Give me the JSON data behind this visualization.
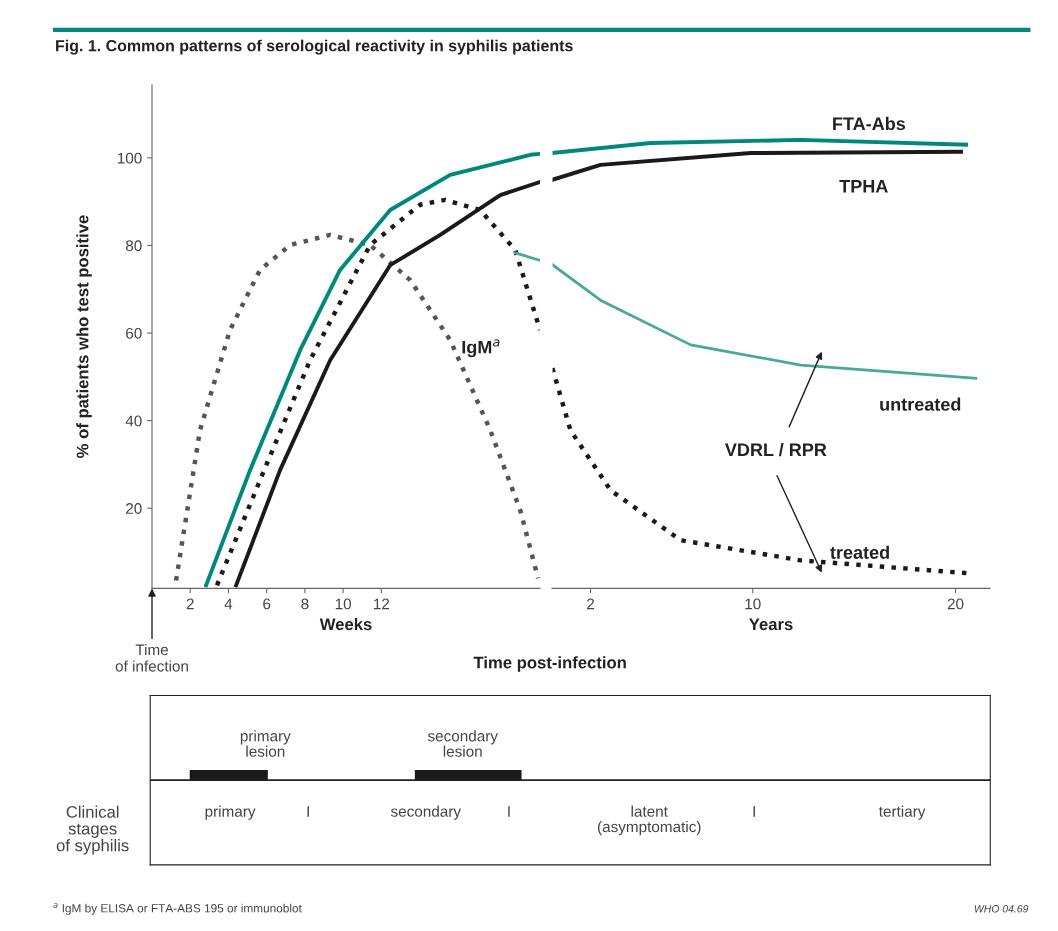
{
  "chart_data": [
    {
      "type": "line",
      "title": "Fig. 1. Common patterns of serological reactivity in syphilis patients",
      "ylabel": "% of patients who test positive",
      "xlabel": "Weeks",
      "xlim": [
        0,
        20.3
      ],
      "ylim": [
        1.7,
        116.7
      ],
      "xticks": [
        2,
        4,
        6,
        8,
        10,
        12
      ],
      "yticks": [
        20,
        40,
        60,
        80,
        100
      ],
      "series": [
        {
          "name": "IgM$^{a}$",
          "color": "#555555",
          "line_style": "dotted",
          "x": [
            1.26,
            2.51,
            4.08,
            5.65,
            7.23,
            9.32,
            11.41,
            13.51,
            15.6,
            17.7,
            19.27,
            20.2
          ],
          "values": [
            3.5,
            37.8,
            60.7,
            74.4,
            80.1,
            82.4,
            80.1,
            72.1,
            58.4,
            37.8,
            19.5,
            4.0
          ]
        },
        {
          "color": "#00897b",
          "line_style": "solid",
          "x": [
            2.83,
            5.13,
            7.75,
            9.84,
            12.46,
            15.6,
            19.79,
            20.3
          ],
          "values": [
            2.4,
            28.7,
            56.1,
            74.4,
            88.1,
            96.1,
            100.7,
            100.9
          ]
        },
        {
          "color": "#1a1a1a",
          "line_style": "solid",
          "x": [
            4.4,
            6.7,
            9.32,
            12.46,
            15.08,
            18.22,
            20.3
          ],
          "values": [
            2.4,
            28.7,
            53.8,
            75.5,
            82.4,
            91.5,
            94.5
          ]
        },
        {
          "color": "#1a1a1a",
          "line_style": "dotted",
          "x": [
            3.4,
            5.65,
            8.27,
            11.41,
            14.03,
            15.34,
            17.17,
            19.0,
            20.3
          ],
          "values": [
            2.4,
            26.4,
            53.8,
            80.1,
            89.3,
            90.4,
            88.1,
            79.0,
            60.7
          ]
        },
        {
          "color": "#4aa898",
          "line_style": "solid",
          "x": [
            19.0,
            20.3
          ],
          "values": [
            78.3,
            76.6
          ]
        }
      ],
      "annotations": [
        "Time post-infection",
        "Time\nof infection",
        "$^{a}$ IgM by ELISA or FTA-ABS 195 or immunoblot",
        "WHO 04.69"
      ]
    },
    {
      "type": "line",
      "xlabel": "Years",
      "xlim": [
        0.1,
        21.7
      ],
      "ylim": [
        1.7,
        116.7
      ],
      "xticks": [
        2,
        10,
        20
      ],
      "tick_labels": "x",
      "series": [
        {
          "name": "FTA-Abs",
          "color": "#00897b",
          "line_style": "solid",
          "x": [
            0.12,
            4.96,
            12.37,
            20.52
          ],
          "values": [
            101.1,
            103.4,
            104.1,
            103.0
          ]
        },
        {
          "name": "TPHA",
          "color": "#1a1a1a",
          "line_style": "solid",
          "x": [
            0.12,
            2.49,
            9.9,
            20.27
          ],
          "values": [
            95.0,
            98.4,
            101.1,
            101.4
          ]
        },
        {
          "name": "treated",
          "color": "#1a1a1a",
          "line_style": "dotted",
          "x": [
            0.12,
            1.01,
            2.99,
            6.44,
            12.37,
            20.77
          ],
          "values": [
            52.0,
            37.8,
            24.1,
            12.7,
            8.1,
            5.1
          ]
        },
        {
          "name": "untreated",
          "color": "#4aa898",
          "line_style": "solid",
          "x": [
            0.12,
            2.49,
            6.94,
            12.37,
            21.0
          ],
          "values": [
            75.6,
            67.5,
            57.3,
            52.7,
            49.7
          ]
        }
      ],
      "annotations": [
        "VDRL / RPR"
      ]
    },
    {
      "type": "other",
      "annotations": [
        "primary\nlesion",
        "secondary\nlesion",
        "Clinical\nstages\nof syphilis",
        "primary",
        "I",
        "secondary",
        "I",
        "latent\n(asymptomatic)",
        "I",
        "tertiary"
      ]
    }
  ]
}
